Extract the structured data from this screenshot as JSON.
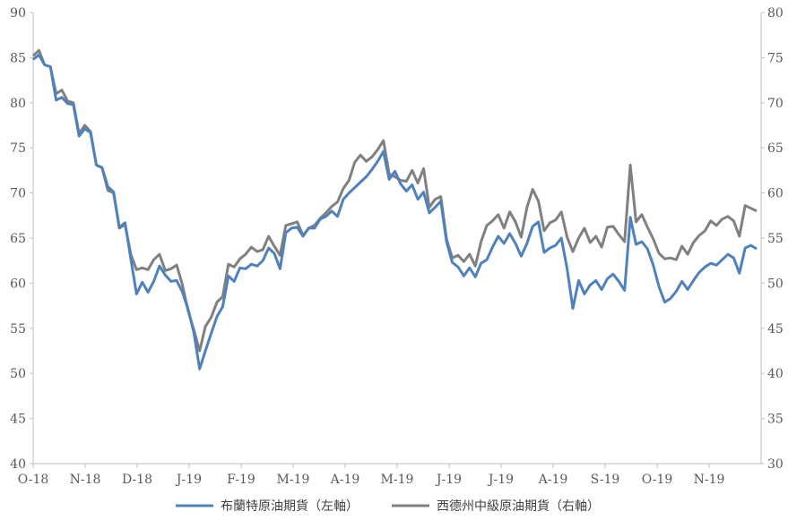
{
  "chart_data": {
    "type": "line",
    "x_labels": [
      "O-18",
      "N-18",
      "D-18",
      "J-19",
      "F-19",
      "M-19",
      "A-19",
      "M-19",
      "J-19",
      "J-19",
      "A-19",
      "S-19",
      "O-19",
      "N-19"
    ],
    "y_left_ticks": [
      "40",
      "45",
      "50",
      "55",
      "60",
      "65",
      "70",
      "75",
      "80",
      "85",
      "90"
    ],
    "y_right_ticks": [
      "30",
      "35",
      "40",
      "45",
      "50",
      "55",
      "60",
      "65",
      "70",
      "75",
      "80"
    ],
    "ylim_left": [
      40,
      90
    ],
    "ylim_right": [
      30,
      80
    ],
    "grid": false,
    "legend_position": "bottom",
    "series": [
      {
        "name": "布蘭特原油期貨（左軸）",
        "axis": "left",
        "color": "#4F81BD",
        "values": [
          84.8,
          85.3,
          84.2,
          84.0,
          80.3,
          80.6,
          79.9,
          79.8,
          76.3,
          77.1,
          76.7,
          73.1,
          72.8,
          70.7,
          70.1,
          66.2,
          66.7,
          62.7,
          58.8,
          60.1,
          59.0,
          60.2,
          61.9,
          60.9,
          60.2,
          60.3,
          59.0,
          57.1,
          54.5,
          50.5,
          52.5,
          54.4,
          56.3,
          57.4,
          60.8,
          60.2,
          61.7,
          61.6,
          62.1,
          61.9,
          62.5,
          63.9,
          63.3,
          61.6,
          65.6,
          66.1,
          66.2,
          65.2,
          66.1,
          66.1,
          67.1,
          67.4,
          68.0,
          67.4,
          69.3,
          70.0,
          70.6,
          71.2,
          71.8,
          72.6,
          73.5,
          74.6,
          71.5,
          72.4,
          71.0,
          70.2,
          70.9,
          69.3,
          70.1,
          67.8,
          68.4,
          69.1,
          64.6,
          62.3,
          61.8,
          60.8,
          61.7,
          60.7,
          62.2,
          62.6,
          64.0,
          65.2,
          64.4,
          65.5,
          64.4,
          63.0,
          64.4,
          66.3,
          66.8,
          63.4,
          63.9,
          64.2,
          65.0,
          61.6,
          57.2,
          60.3,
          58.8,
          59.8,
          60.3,
          59.3,
          60.5,
          61.0,
          60.2,
          59.2,
          67.3,
          64.3,
          64.6,
          63.8,
          62.0,
          59.6,
          57.9,
          58.3,
          59.1,
          60.2,
          59.3,
          60.3,
          61.2,
          61.8,
          62.2,
          62.0,
          62.6,
          63.2,
          62.8,
          61.1,
          63.9,
          64.2,
          63.8
        ]
      },
      {
        "name": "西德州中級原油期貨（右軸）",
        "axis": "right",
        "color": "#808080",
        "values": [
          75.2,
          75.8,
          74.2,
          74.0,
          71.0,
          71.4,
          70.2,
          70.0,
          66.6,
          67.5,
          66.8,
          63.1,
          62.8,
          60.3,
          60.0,
          56.1,
          56.5,
          53.2,
          51.5,
          51.7,
          51.5,
          52.6,
          53.2,
          51.4,
          51.6,
          52.0,
          49.8,
          46.9,
          44.8,
          42.5,
          45.2,
          46.2,
          47.9,
          48.5,
          52.1,
          51.8,
          52.7,
          53.2,
          54.0,
          53.5,
          53.7,
          55.2,
          54.1,
          53.1,
          56.4,
          56.6,
          56.8,
          55.3,
          56.1,
          56.4,
          57.2,
          57.8,
          58.5,
          59.0,
          60.5,
          61.4,
          63.4,
          64.2,
          63.5,
          64.0,
          64.8,
          65.8,
          62.1,
          61.8,
          61.4,
          61.3,
          62.5,
          61.1,
          62.7,
          58.4,
          59.3,
          59.6,
          54.9,
          52.8,
          53.1,
          52.4,
          53.2,
          51.9,
          54.6,
          56.4,
          56.9,
          57.6,
          56.1,
          57.9,
          56.8,
          55.1,
          58.4,
          60.4,
          59.1,
          55.8,
          56.7,
          57.0,
          57.9,
          55.1,
          53.5,
          55.0,
          56.1,
          54.5,
          55.2,
          54.0,
          56.2,
          56.3,
          55.4,
          54.6,
          63.1,
          56.8,
          57.6,
          56.2,
          54.9,
          53.3,
          52.7,
          52.8,
          52.6,
          54.1,
          53.2,
          54.5,
          55.3,
          55.8,
          56.9,
          56.4,
          57.1,
          57.4,
          56.9,
          55.2,
          58.6,
          58.3,
          58.0
        ]
      }
    ]
  }
}
